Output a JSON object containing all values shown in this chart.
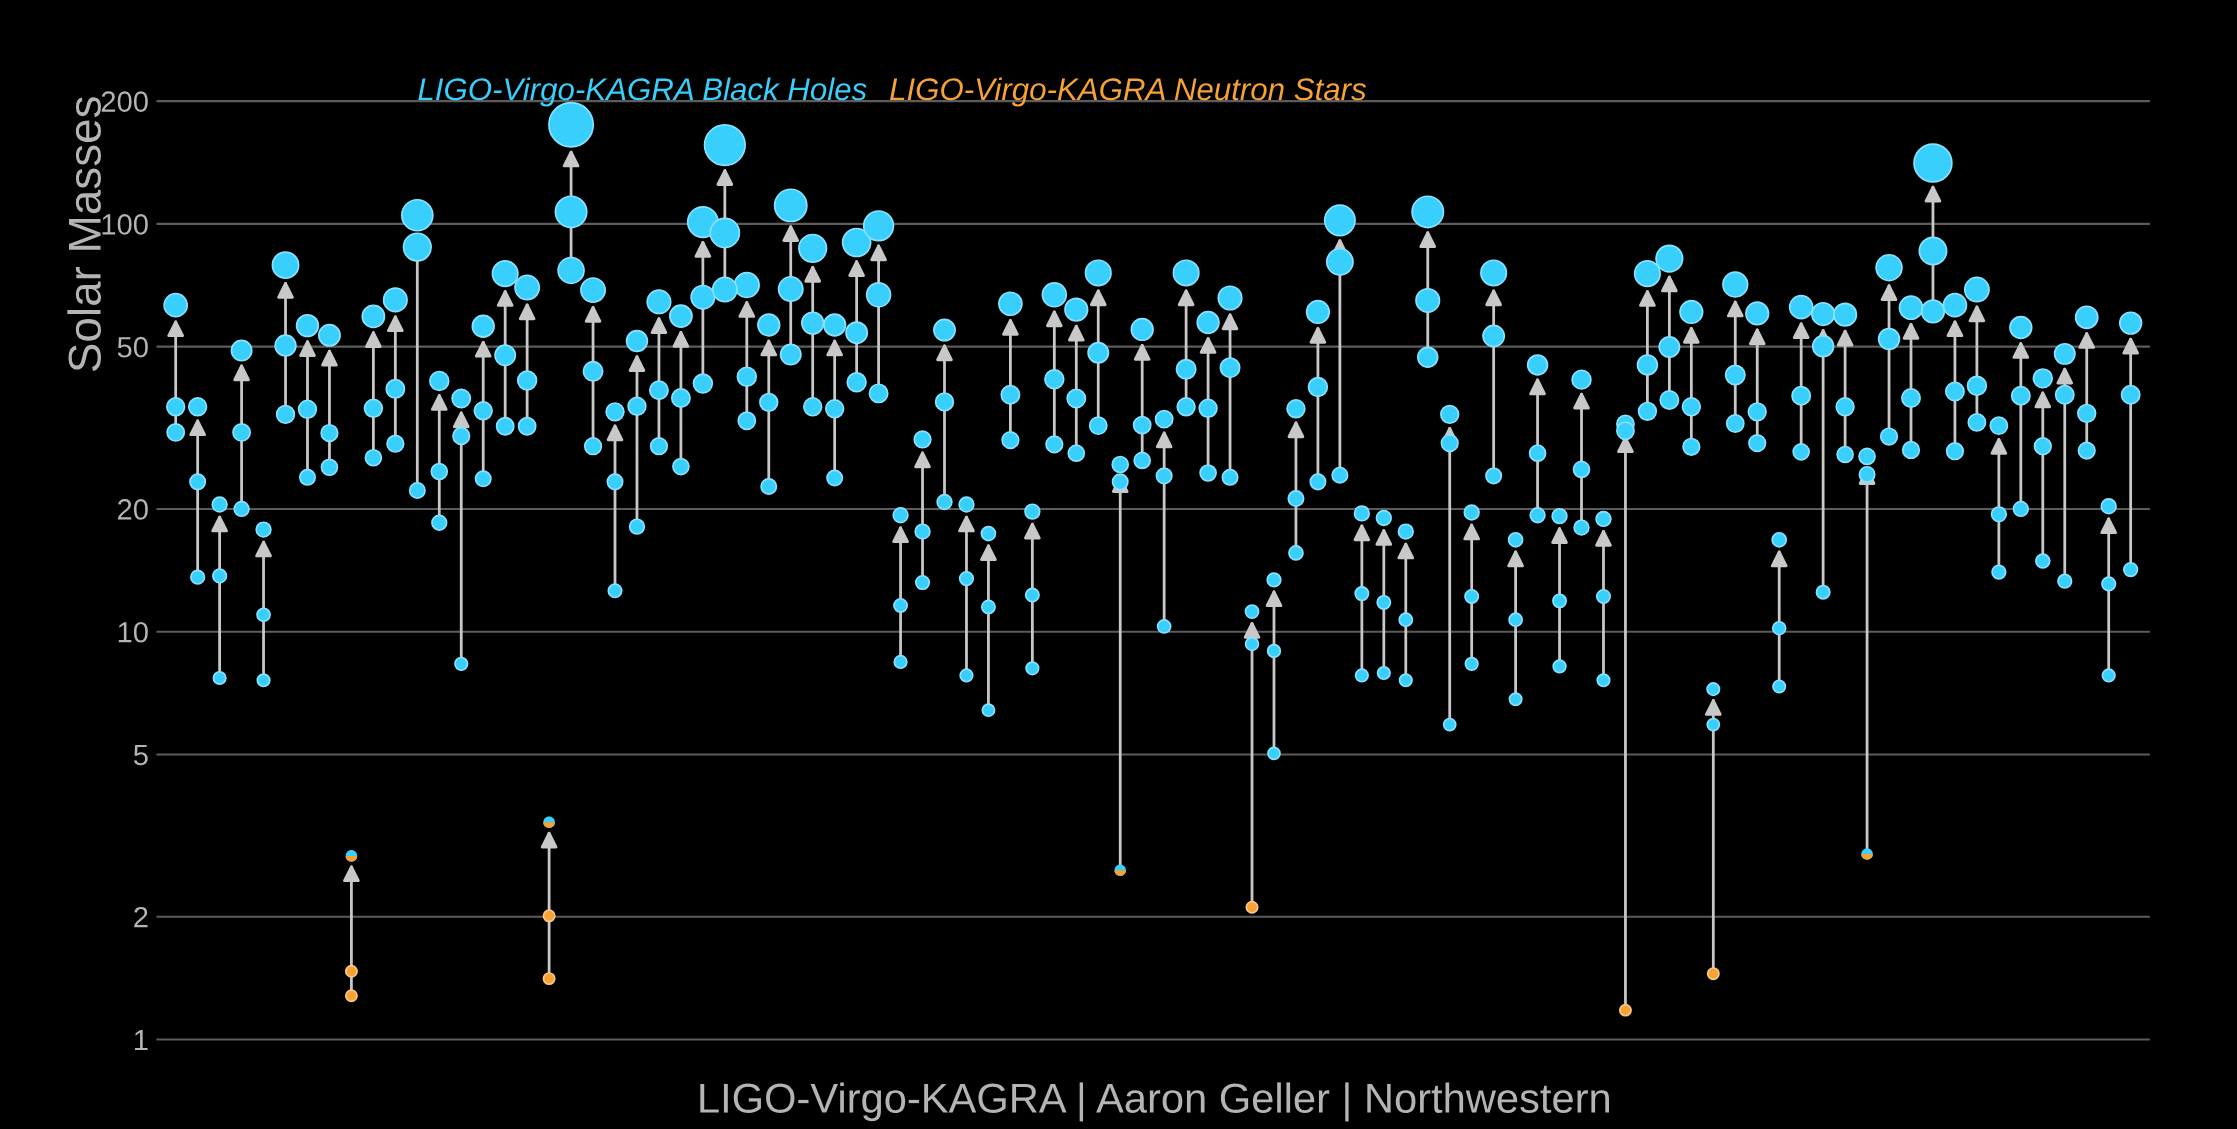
{
  "chart_data": {
    "type": "bubble",
    "ylabel": "Solar Masses",
    "categories": [
      null,
      null,
      null,
      null,
      null,
      null,
      null,
      null,
      null,
      null,
      null,
      null,
      null,
      null,
      null,
      null,
      null,
      null,
      null,
      null,
      null,
      null,
      null,
      null,
      null,
      null,
      null,
      null,
      null,
      null,
      null,
      null,
      null,
      null,
      null,
      null,
      null,
      null,
      null,
      null,
      null,
      null,
      null,
      null,
      null,
      null,
      null,
      null,
      null,
      null,
      null,
      null,
      null,
      null,
      null,
      null,
      null,
      null,
      null,
      null,
      null,
      null,
      null,
      null,
      null,
      null,
      null,
      null,
      null,
      null,
      null,
      null,
      null,
      null,
      null,
      null,
      null,
      null,
      null,
      null,
      null,
      null,
      null,
      null,
      null,
      null,
      null,
      null,
      null,
      null
    ],
    "series": [
      {
        "name": "LIGO-Virgo-KAGRA Black Holes",
        "color": "#38cffc",
        "values": [
          63.2,
          35.6,
          20.5,
          48.9,
          17.8,
          79.2,
          56.3,
          53.3,
          2.82,
          59.3,
          65.1,
          105,
          41.2,
          37.3,
          56.1,
          75.5,
          69.8,
          3.41,
          175,
          68.8,
          34.6,
          51.6,
          64.4,
          59.4,
          101,
          156,
          70.8,
          56.5,
          111,
          87.1,
          56.5,
          90.0,
          98.9,
          19.3,
          29.6,
          54.9,
          20.5,
          17.4,
          63.7,
          19.7,
          67.0,
          61.6,
          75.8,
          25.7,
          55.1,
          33.2,
          75.8,
          57.3,
          65.8,
          11.2,
          13.4,
          35.2,
          60.8,
          102,
          19.5,
          19.0,
          17.6,
          107,
          34.1,
          19.6,
          75.8,
          16.8,
          45.1,
          19.2,
          41.5,
          18.9,
          32.3,
          75.5,
          82.2,
          60.8,
          7.23,
          71.0,
          60.3,
          16.8,
          62.5,
          60.1,
          59.9,
          26.9,
          78.1,
          62.3,
          141,
          63.2,
          69.0,
          32.0,
          55.7,
          41.8,
          48.0,
          59.0,
          20.3,
          57.1
        ],
        "sizes": [
          0.27,
          0.16,
          0.11,
          0.21,
          0.11,
          0.35,
          0.24,
          0.23,
          0.068,
          0.25,
          0.28,
          0.49,
          0.18,
          0.17,
          0.24,
          0.33,
          0.3,
          0.069,
          1,
          0.3,
          0.16,
          0.22,
          0.28,
          0.25,
          0.47,
          0.84,
          0.31,
          0.24,
          0.53,
          0.39,
          0.24,
          0.4,
          0.45,
          0.11,
          0.14,
          0.23,
          0.11,
          0.1,
          0.27,
          0.11,
          0.29,
          0.26,
          0.33,
          0.13,
          0.24,
          0.15,
          0.33,
          0.24,
          0.28,
          0.088,
          0.094,
          0.16,
          0.26,
          0.47,
          0.11,
          0.11,
          0.11,
          0.5,
          0.16,
          0.11,
          0.33,
          0.1,
          0.2,
          0.11,
          0.18,
          0.11,
          0.15,
          0.33,
          0.36,
          0.26,
          0.078,
          0.31,
          0.26,
          0.1,
          0.27,
          0.26,
          0.26,
          0.13,
          0.34,
          0.27,
          0.73,
          0.27,
          0.3,
          0.15,
          0.24,
          0.18,
          0.21,
          0.25,
          0.11,
          0.24
        ]
      },
      {
        "color": "#38cffc",
        "values": [
          35.6,
          23.3,
          13.7,
          30.8,
          11.0,
          50.3,
          35.1,
          30.7,
          null,
          35.3,
          39.4,
          87.7,
          24.7,
          30.2,
          34.8,
          47.6,
          41.3,
          null,
          107,
          43.5,
          23.3,
          35.7,
          39.1,
          37.4,
          66.1,
          95.0,
          42.2,
          36.5,
          69.2,
          57.1,
          35.2,
          54.1,
          67.0,
          11.6,
          17.6,
          36.6,
          13.5,
          11.5,
          38.1,
          12.3,
          41.6,
          37.3,
          48.3,
          23.3,
          32.1,
          24.1,
          44.0,
          35.3,
          44.4,
          9.33,
          8.97,
          21.2,
          39.8,
          80.7,
          12.4,
          11.8,
          10.7,
          64.9,
          29.0,
          12.2,
          53.1,
          10.7,
          27.4,
          11.9,
          25.0,
          12.2,
          31.1,
          45.1,
          49.9,
          35.6,
          5.92,
          42.6,
          34.6,
          10.2,
          37.9,
          50.1,
          35.6,
          24.3,
          52.2,
          37.4,
          85.8,
          38.8,
          40.1,
          19.4,
          37.9,
          28.5,
          38.1,
          34.3,
          13.1,
          38.1
        ],
        "sizes": [
          0.16,
          0.12,
          0.094,
          0.15,
          0.087,
          0.22,
          0.16,
          0.14,
          null,
          0.16,
          0.17,
          0.39,
          0.13,
          0.14,
          0.16,
          0.21,
          0.18,
          null,
          0.5,
          0.19,
          0.12,
          0.16,
          0.17,
          0.17,
          0.28,
          0.43,
          0.18,
          0.16,
          0.3,
          0.24,
          0.16,
          0.23,
          0.29,
          0.089,
          0.11,
          0.16,
          0.094,
          0.089,
          0.17,
          0.091,
          0.18,
          0.17,
          0.21,
          0.12,
          0.15,
          0.12,
          0.19,
          0.16,
          0.19,
          0.083,
          0.082,
          0.12,
          0.18,
          0.35,
          0.091,
          0.09,
          0.087,
          0.28,
          0.14,
          0.091,
          0.23,
          0.087,
          0.13,
          0.09,
          0.13,
          0.091,
          0.15,
          0.2,
          0.21,
          0.16,
          0.075,
          0.19,
          0.16,
          0.085,
          0.17,
          0.22,
          0.16,
          0.12,
          0.22,
          0.17,
          0.38,
          0.17,
          0.18,
          0.11,
          0.17,
          0.14,
          0.17,
          0.16,
          0.093,
          0.17
        ]
      },
      {
        "color": "#38cffc",
        "values": [
          30.8,
          13.6,
          7.7,
          20.0,
          7.6,
          34.1,
          23.9,
          25.3,
          null,
          26.7,
          28.9,
          22.2,
          18.5,
          8.34,
          23.7,
          31.9,
          31.9,
          null,
          76.9,
          28.5,
          12.6,
          18.1,
          28.5,
          25.4,
          40.6,
          69.0,
          32.9,
          22.7,
          47.8,
          35.6,
          23.8,
          40.9,
          38.4,
          8.43,
          13.2,
          20.8,
          7.81,
          6.42,
          29.5,
          8.13,
          28.8,
          27.4,
          32.0,
          2.6,
          26.3,
          10.3,
          35.6,
          24.5,
          23.9,
          null,
          5.03,
          15.6,
          23.3,
          24.2,
          7.81,
          7.92,
          7.6,
          47.1,
          5.92,
          8.34,
          24.1,
          6.83,
          19.3,
          8.22,
          18.0,
          7.6,
          null,
          34.7,
          37.0,
          28.4,
          null,
          32.4,
          29.0,
          7.34,
          27.6,
          12.5,
          27.2,
          2.85,
          30.1,
          27.9,
          61.0,
          27.7,
          32.6,
          14.0,
          20.0,
          14.9,
          13.3,
          27.8,
          7.81,
          14.2
        ],
        "sizes": [
          0.15,
          0.094,
          0.079,
          0.11,
          0.079,
          0.16,
          0.12,
          0.13,
          null,
          0.13,
          0.14,
          0.12,
          0.11,
          0.081,
          0.12,
          0.15,
          0.15,
          null,
          0.34,
          0.14,
          0.092,
          0.11,
          0.14,
          0.13,
          0.18,
          0.3,
          0.15,
          0.12,
          0.21,
          0.16,
          0.12,
          0.18,
          0.17,
          0.081,
          0.093,
          0.11,
          0.08,
          0.076,
          0.14,
          0.08,
          0.14,
          0.13,
          0.15,
          0.067,
          0.13,
          0.086,
          0.16,
          0.13,
          0.12,
          null,
          0.073,
          0.1,
          0.12,
          0.12,
          0.08,
          0.08,
          0.079,
          0.2,
          0.075,
          0.081,
          0.12,
          0.077,
          0.11,
          0.081,
          0.11,
          0.079,
          null,
          0.16,
          0.17,
          0.14,
          null,
          0.15,
          0.14,
          0.078,
          0.13,
          0.091,
          0.13,
          0.068,
          0.14,
          0.14,
          0.26,
          0.14,
          0.15,
          0.095,
          0.11,
          0.098,
          0.094,
          0.14,
          0.08,
          0.096
        ]
      },
      {
        "name": "LIGO-Virgo-KAGRA Neutron Stars",
        "color": "#f6a234",
        "values": [
          null,
          null,
          null,
          null,
          null,
          null,
          null,
          null,
          2.82,
          null,
          null,
          null,
          null,
          null,
          null,
          null,
          null,
          3.41,
          null,
          null,
          null,
          null,
          null,
          null,
          null,
          null,
          null,
          null,
          null,
          null,
          null,
          null,
          null,
          null,
          null,
          null,
          null,
          null,
          null,
          null,
          null,
          null,
          null,
          null,
          null,
          null,
          null,
          null,
          null,
          null,
          null,
          null,
          null,
          null,
          null,
          null,
          null,
          null,
          null,
          null,
          null,
          null,
          null,
          null,
          null,
          null,
          null,
          null,
          null,
          null,
          null,
          null,
          null,
          null,
          null,
          null,
          null,
          null,
          null,
          null,
          null,
          null,
          null,
          null,
          null,
          null,
          null,
          null,
          null,
          null
        ],
        "sizes": [
          null,
          null,
          null,
          null,
          null,
          null,
          null,
          null,
          0.068,
          null,
          null,
          null,
          null,
          null,
          null,
          null,
          null,
          0.069,
          null,
          null,
          null,
          null,
          null,
          null,
          null,
          null,
          null,
          null,
          null,
          null,
          null,
          null,
          null,
          null,
          null,
          null,
          null,
          null,
          null,
          null,
          null,
          null,
          null,
          null,
          null,
          null,
          null,
          null,
          null,
          null,
          null,
          null,
          null,
          null,
          null,
          null,
          null,
          null,
          null,
          null,
          null,
          null,
          null,
          null,
          null,
          null,
          null,
          null,
          null,
          null,
          null,
          null,
          null,
          null,
          null,
          null,
          null,
          null,
          null,
          null,
          null,
          null,
          null,
          null,
          null,
          null,
          null,
          null,
          null,
          null
        ]
      },
      {
        "color": "#f6a234",
        "values": [
          null,
          null,
          null,
          null,
          null,
          null,
          null,
          null,
          1.47,
          null,
          null,
          null,
          null,
          null,
          null,
          null,
          null,
          2.01,
          null,
          null,
          null,
          null,
          null,
          null,
          null,
          null,
          null,
          null,
          null,
          null,
          null,
          null,
          null,
          null,
          null,
          null,
          null,
          null,
          null,
          null,
          null,
          null,
          null,
          null,
          null,
          null,
          null,
          null,
          null,
          null,
          null,
          null,
          null,
          null,
          null,
          null,
          null,
          null,
          null,
          null,
          null,
          null,
          null,
          null,
          null,
          null,
          null,
          null,
          null,
          null,
          null,
          null,
          null,
          null,
          null,
          null,
          null,
          null,
          null,
          null,
          null,
          null,
          null,
          null,
          null,
          null,
          null,
          null,
          null,
          null
        ],
        "sizes": [
          null,
          null,
          null,
          null,
          null,
          null,
          null,
          null,
          0.065,
          null,
          null,
          null,
          null,
          null,
          null,
          null,
          null,
          0.066,
          null,
          null,
          null,
          null,
          null,
          null,
          null,
          null,
          null,
          null,
          null,
          null,
          null,
          null,
          null,
          null,
          null,
          null,
          null,
          null,
          null,
          null,
          null,
          null,
          null,
          null,
          null,
          null,
          null,
          null,
          null,
          null,
          null,
          null,
          null,
          null,
          null,
          null,
          null,
          null,
          null,
          null,
          null,
          null,
          null,
          null,
          null,
          null,
          null,
          null,
          null,
          null,
          null,
          null,
          null,
          null,
          null,
          null,
          null,
          null,
          null,
          null,
          null,
          null,
          null,
          null,
          null,
          null,
          null,
          null,
          null,
          null
        ]
      },
      {
        "color": "#f6a234",
        "values": [
          null,
          null,
          null,
          null,
          null,
          null,
          null,
          null,
          1.28,
          null,
          null,
          null,
          null,
          null,
          null,
          null,
          null,
          1.41,
          null,
          null,
          null,
          null,
          null,
          null,
          null,
          null,
          null,
          null,
          null,
          null,
          null,
          null,
          null,
          null,
          null,
          null,
          null,
          null,
          null,
          null,
          null,
          null,
          null,
          2.6,
          null,
          null,
          null,
          null,
          null,
          2.11,
          null,
          null,
          null,
          null,
          null,
          null,
          null,
          null,
          null,
          null,
          null,
          null,
          null,
          null,
          null,
          null,
          1.18,
          null,
          null,
          null,
          1.45,
          null,
          null,
          null,
          null,
          null,
          null,
          2.85,
          null,
          null,
          null,
          null,
          null,
          null,
          null,
          null,
          null,
          null,
          null,
          null
        ],
        "sizes": [
          null,
          null,
          null,
          null,
          null,
          null,
          null,
          null,
          0.065,
          null,
          null,
          null,
          null,
          null,
          null,
          null,
          null,
          0.065,
          null,
          null,
          null,
          null,
          null,
          null,
          null,
          null,
          null,
          null,
          null,
          null,
          null,
          null,
          null,
          null,
          null,
          null,
          null,
          null,
          null,
          null,
          null,
          null,
          null,
          0.067,
          null,
          null,
          null,
          null,
          null,
          0.066,
          null,
          null,
          null,
          null,
          null,
          null,
          null,
          null,
          null,
          null,
          null,
          null,
          null,
          null,
          null,
          null,
          0.064,
          null,
          null,
          null,
          0.065,
          null,
          null,
          null,
          null,
          null,
          null,
          0.068,
          null,
          null,
          null,
          null,
          null,
          null,
          null,
          null,
          null,
          null,
          null,
          null
        ]
      }
    ],
    "log": true,
    "ylim": [
      0.89,
      259
    ],
    "yticks": [
      1,
      2,
      5,
      10,
      20,
      50,
      100,
      200
    ],
    "grid": "y",
    "legend": "top",
    "tick_labels": "y",
    "marker": "circle",
    "annotations": [
      "LIGO-Virgo-KAGRA | Aaron Geller | Northwestern"
    ]
  }
}
